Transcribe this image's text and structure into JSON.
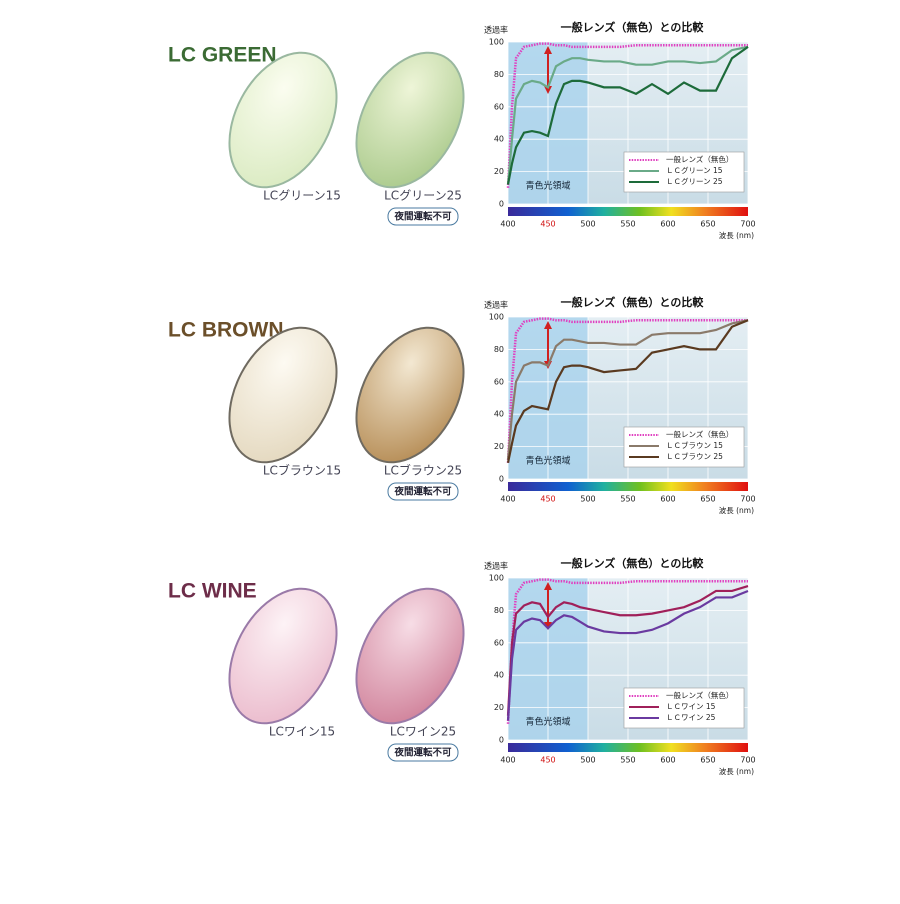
{
  "sections": [
    {
      "title": "LC GREEN",
      "lenses": [
        {
          "label": "LCグリーン15"
        },
        {
          "label": "LCグリーン25"
        }
      ],
      "badge": "夜間運転不可"
    },
    {
      "title": "LC BROWN",
      "lenses": [
        {
          "label": "LCブラウン15"
        },
        {
          "label": "LCブラウン25"
        }
      ],
      "badge": "夜間運転不可"
    },
    {
      "title": "LC WINE",
      "lenses": [
        {
          "label": "LCワイン15"
        },
        {
          "label": "LCワイン25"
        }
      ],
      "badge": "夜間運転不可"
    }
  ],
  "chart_data": [
    {
      "type": "line",
      "title": "一般レンズ（無色）との比較",
      "y_label": "透過率",
      "x_label": "波長 (nm)",
      "annotation": "青色光領域",
      "x": [
        400,
        405,
        410,
        420,
        430,
        440,
        450,
        460,
        470,
        480,
        490,
        500,
        520,
        540,
        560,
        580,
        600,
        620,
        640,
        660,
        680,
        700
      ],
      "xlim": [
        400,
        700
      ],
      "ylim": [
        0,
        100
      ],
      "xticks": [
        400,
        450,
        500,
        550,
        600,
        650,
        700
      ],
      "yticks": [
        0,
        20,
        40,
        60,
        80,
        100
      ],
      "grid": true,
      "series": [
        {
          "name": "一般レンズ（無色）",
          "color": "#e040c0",
          "values": [
            10,
            60,
            90,
            97,
            98,
            99,
            99,
            98,
            98,
            97,
            97,
            97,
            97,
            97,
            98,
            98,
            98,
            98,
            98,
            98,
            98,
            98
          ]
        },
        {
          "name": "ＬＣグリーン 15",
          "color": "#6aaa88",
          "values": [
            12,
            40,
            65,
            74,
            76,
            75,
            72,
            85,
            88,
            90,
            90,
            89,
            88,
            88,
            86,
            86,
            88,
            88,
            87,
            88,
            95,
            97
          ]
        },
        {
          "name": "ＬＣグリーン 25",
          "color": "#1d6b3a",
          "values": [
            12,
            25,
            35,
            44,
            45,
            44,
            42,
            62,
            74,
            76,
            76,
            75,
            72,
            72,
            68,
            74,
            68,
            75,
            70,
            70,
            90,
            97
          ]
        }
      ]
    },
    {
      "type": "line",
      "title": "一般レンズ（無色）との比較",
      "y_label": "透過率",
      "x_label": "波長 (nm)",
      "annotation": "青色光領域",
      "x": [
        400,
        405,
        410,
        420,
        430,
        440,
        450,
        460,
        470,
        480,
        490,
        500,
        520,
        540,
        560,
        580,
        600,
        620,
        640,
        660,
        680,
        700
      ],
      "xlim": [
        400,
        700
      ],
      "ylim": [
        0,
        100
      ],
      "xticks": [
        400,
        450,
        500,
        550,
        600,
        650,
        700
      ],
      "yticks": [
        0,
        20,
        40,
        60,
        80,
        100
      ],
      "grid": true,
      "series": [
        {
          "name": "一般レンズ（無色）",
          "color": "#e040c0",
          "values": [
            10,
            60,
            90,
            97,
            98,
            99,
            99,
            98,
            98,
            97,
            97,
            97,
            97,
            97,
            98,
            98,
            98,
            98,
            98,
            98,
            98,
            98
          ]
        },
        {
          "name": "ＬＣブラウン 15",
          "color": "#8a7a6a",
          "values": [
            12,
            40,
            60,
            70,
            72,
            72,
            70,
            82,
            86,
            86,
            85,
            84,
            84,
            83,
            83,
            89,
            90,
            90,
            90,
            92,
            96,
            98
          ]
        },
        {
          "name": "ＬＣブラウン 25",
          "color": "#5a3a20",
          "values": [
            10,
            22,
            33,
            42,
            45,
            44,
            43,
            60,
            69,
            70,
            70,
            69,
            66,
            67,
            68,
            78,
            80,
            82,
            80,
            80,
            94,
            98
          ]
        }
      ]
    },
    {
      "type": "line",
      "title": "一般レンズ（無色）との比較",
      "y_label": "透過率",
      "x_label": "波長 (nm)",
      "annotation": "青色光領域",
      "x": [
        400,
        405,
        410,
        420,
        430,
        440,
        450,
        460,
        470,
        480,
        490,
        500,
        520,
        540,
        560,
        580,
        600,
        620,
        640,
        660,
        680,
        700
      ],
      "xlim": [
        400,
        700
      ],
      "ylim": [
        0,
        100
      ],
      "xticks": [
        400,
        450,
        500,
        550,
        600,
        650,
        700
      ],
      "yticks": [
        0,
        20,
        40,
        60,
        80,
        100
      ],
      "grid": true,
      "series": [
        {
          "name": "一般レンズ（無色）",
          "color": "#e040c0",
          "values": [
            10,
            60,
            90,
            97,
            98,
            99,
            99,
            98,
            98,
            97,
            97,
            97,
            97,
            97,
            98,
            98,
            98,
            98,
            98,
            98,
            98,
            98
          ]
        },
        {
          "name": "ＬＣワイン 15",
          "color": "#a0205a",
          "values": [
            15,
            60,
            78,
            83,
            85,
            84,
            76,
            82,
            85,
            84,
            82,
            81,
            79,
            77,
            77,
            78,
            80,
            82,
            86,
            92,
            92,
            95
          ]
        },
        {
          "name": "ＬＣワイン 25",
          "color": "#6a3aa0",
          "values": [
            12,
            50,
            68,
            73,
            75,
            74,
            69,
            74,
            77,
            76,
            73,
            70,
            67,
            66,
            66,
            68,
            72,
            78,
            82,
            88,
            88,
            92
          ]
        }
      ]
    }
  ]
}
